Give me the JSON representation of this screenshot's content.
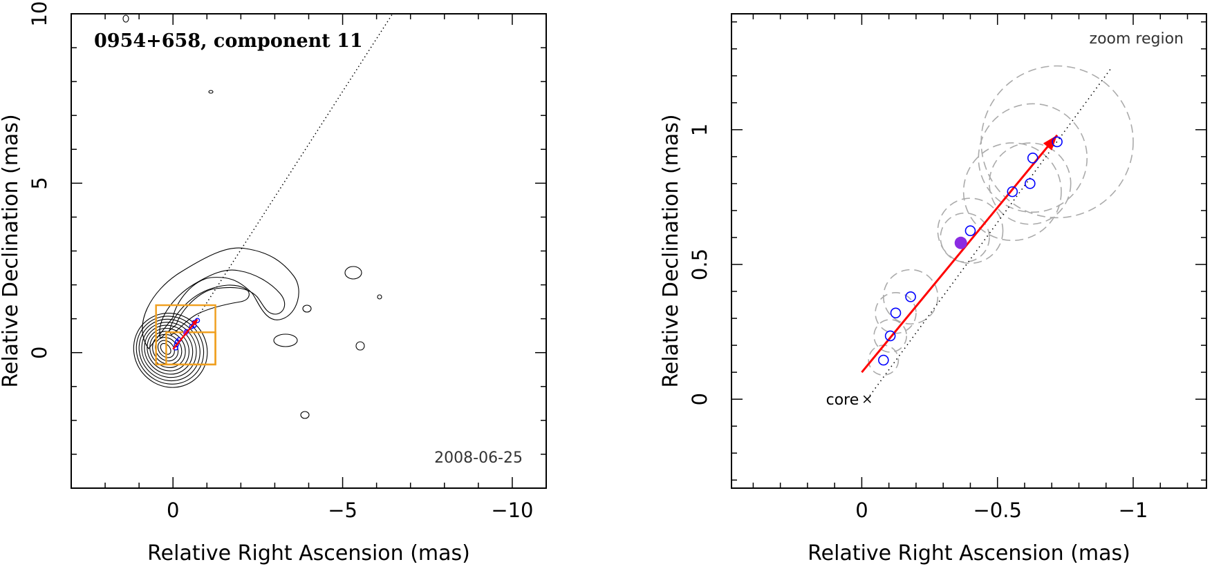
{
  "chart_data": [
    {
      "type": "contour",
      "title": "0954+658, component 11",
      "date": "2008-06-25",
      "xlabel": "Relative Right Ascension (mas)",
      "ylabel": "Relative Declination (mas)",
      "xlim": [
        3,
        -11
      ],
      "ylim": [
        -4,
        10
      ],
      "xticks": [
        0,
        -5,
        -10
      ],
      "xtick_labels": [
        "0",
        "−5",
        "−10"
      ],
      "yticks": [
        0,
        5,
        10
      ],
      "ytick_labels": [
        "0",
        "5",
        "10"
      ],
      "components": [
        {
          "x": -0.08,
          "y": 0.14
        },
        {
          "x": -0.1,
          "y": 0.23
        },
        {
          "x": -0.13,
          "y": 0.32
        },
        {
          "x": -0.18,
          "y": 0.38
        },
        {
          "x": -0.4,
          "y": 0.62
        },
        {
          "x": -0.55,
          "y": 0.77
        },
        {
          "x": -0.62,
          "y": 0.8
        },
        {
          "x": -0.63,
          "y": 0.89
        },
        {
          "x": -0.72,
          "y": 0.95
        }
      ],
      "highlighted_component": {
        "x": -0.37,
        "y": 0.58
      },
      "motion_vector": {
        "start": [
          0.0,
          0.1
        ],
        "end": [
          -0.72,
          0.98
        ]
      },
      "zoom_boxes": [
        {
          "x": [
            0.5,
            -1.25
          ],
          "y": [
            -0.35,
            1.4
          ]
        },
        {
          "x": [
            0.2,
            -1.25
          ],
          "y": [
            -0.35,
            0.6
          ]
        }
      ],
      "colors": {
        "components": "#0000ff",
        "highlight": "#8a2be2",
        "vector": "#ff0000",
        "zoom_box": "#f0a020",
        "contours": "#000000"
      }
    },
    {
      "type": "scatter",
      "xlabel": "Relative Right Ascension (mas)",
      "ylabel": "Relative Declination (mas)",
      "xlim": [
        0.48,
        -1.27
      ],
      "ylim": [
        -0.33,
        1.43
      ],
      "xticks": [
        0,
        -0.5,
        -1
      ],
      "xtick_labels": [
        "0",
        "−0.5",
        "−1"
      ],
      "yticks": [
        0,
        0.5,
        1
      ],
      "ytick_labels": [
        "0",
        "0.5",
        "1"
      ],
      "annotations": [
        "zoom region",
        "core"
      ],
      "components": [
        {
          "x": -0.08,
          "y": 0.145,
          "size": 0.055
        },
        {
          "x": -0.105,
          "y": 0.235,
          "size": 0.06
        },
        {
          "x": -0.125,
          "y": 0.32,
          "size": 0.075
        },
        {
          "x": -0.18,
          "y": 0.38,
          "size": 0.1
        },
        {
          "x": -0.4,
          "y": 0.625,
          "size": 0.12
        },
        {
          "x": -0.555,
          "y": 0.77,
          "size": 0.18
        },
        {
          "x": -0.62,
          "y": 0.8,
          "size": 0.15
        },
        {
          "x": -0.63,
          "y": 0.895,
          "size": 0.2
        },
        {
          "x": -0.72,
          "y": 0.955,
          "size": 0.28
        }
      ],
      "highlighted_component": {
        "x": -0.365,
        "y": 0.58
      },
      "motion_vector": {
        "start": [
          0.0,
          0.1
        ],
        "end": [
          -0.72,
          0.98
        ]
      },
      "ridge_line": {
        "start": [
          -0.02,
          0.0
        ],
        "end": [
          -0.92,
          1.23
        ]
      },
      "colors": {
        "components": "#0000ff",
        "highlight": "#8a2be2",
        "vector": "#ff0000",
        "rings": "#aaaaaa"
      }
    }
  ]
}
